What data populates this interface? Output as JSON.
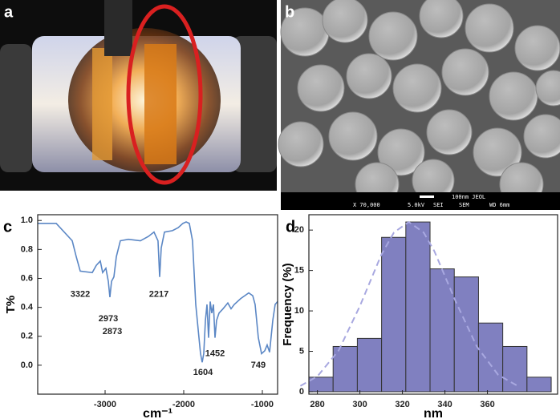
{
  "panel_labels": [
    "a",
    "b",
    "c",
    "d"
  ],
  "sem_caption": {
    "scale": "100nm JEOL",
    "magnification": "X 70,000",
    "voltage": "5.0kV",
    "detector": "SEI",
    "mode": "SEM",
    "working_distance": "WD 6mm"
  },
  "chart_data": [
    {
      "type": "line",
      "x_label": "cm⁻¹",
      "y_label": "T%",
      "color": "#5b87c5",
      "x": [
        -3857,
        -3622,
        -3418,
        -3367,
        -3316,
        -3163,
        -3112,
        -3061,
        -3031,
        -2990,
        -2959,
        -2939,
        -2918,
        -2888,
        -2857,
        -2806,
        -2704,
        -2551,
        -2449,
        -2378,
        -2327,
        -2306,
        -2286,
        -2245,
        -2143,
        -2071,
        -2010,
        -1969,
        -1929,
        -1888,
        -1847,
        -1806,
        -1786,
        -1765,
        -1745,
        -1724,
        -1704,
        -1684,
        -1663,
        -1643,
        -1622,
        -1602,
        -1582,
        -1551,
        -1500,
        -1439,
        -1398,
        -1357,
        -1276,
        -1173,
        -1122,
        -1092,
        -1051,
        -1010,
        -969,
        -939,
        -908,
        -867,
        -837,
        -806
      ],
      "values": [
        0.98,
        0.98,
        0.86,
        0.75,
        0.65,
        0.64,
        0.69,
        0.72,
        0.64,
        0.67,
        0.58,
        0.47,
        0.58,
        0.61,
        0.75,
        0.86,
        0.87,
        0.86,
        0.89,
        0.92,
        0.86,
        0.61,
        0.81,
        0.92,
        0.93,
        0.95,
        0.98,
        0.99,
        0.98,
        0.86,
        0.42,
        0.19,
        0.08,
        0.02,
        0.08,
        0.31,
        0.42,
        0.19,
        0.44,
        0.36,
        0.42,
        0.19,
        0.31,
        0.36,
        0.39,
        0.43,
        0.39,
        0.42,
        0.46,
        0.5,
        0.48,
        0.42,
        0.19,
        0.08,
        0.1,
        0.14,
        0.09,
        0.31,
        0.42,
        0.44
      ],
      "annotations": [
        {
          "text": "3322",
          "x": -3316,
          "y": 0.49
        },
        {
          "text": "2973",
          "x": -2959,
          "y": 0.32
        },
        {
          "text": "2873",
          "x": -2908,
          "y": 0.23
        },
        {
          "text": "2217",
          "x": -2316,
          "y": 0.49
        },
        {
          "text": "1604",
          "x": -1755,
          "y": -0.05
        },
        {
          "text": "1452",
          "x": -1602,
          "y": 0.08
        },
        {
          "text": "749",
          "x": -1051,
          "y": 0.0
        }
      ],
      "xlim": [
        -3857,
        -806
      ],
      "ylim": [
        -0.2,
        1.04
      ],
      "xticks": [
        -3000,
        -2000,
        -1000
      ],
      "yticks": [
        {
          "value": 0,
          "label": "0.0"
        },
        {
          "value": 0.2,
          "label": "0.2"
        },
        {
          "value": 0.4,
          "label": "0.4"
        },
        {
          "value": 0.6,
          "label": "0.6"
        },
        {
          "value": 0.8,
          "label": "0.8"
        },
        {
          "value": 1,
          "label": "1.0"
        }
      ]
    },
    {
      "type": "histogram",
      "x_label": "nm",
      "y_label": "Frequency (%)",
      "color": "#8080c0",
      "bins": [
        276,
        287.4,
        298.8,
        310.2,
        321.6,
        333,
        344.4,
        355.8,
        367.2,
        378.6,
        390
      ],
      "values": [
        1.8,
        5.6,
        6.6,
        19.1,
        21.0,
        15.2,
        14.2,
        8.5,
        5.6,
        1.8
      ],
      "fit": {
        "color": "#a8a8e0",
        "x": [
          272,
          280,
          290,
          300,
          310,
          316,
          323,
          330,
          335,
          345,
          355,
          365,
          375
        ],
        "values": [
          0.72,
          1.9,
          5.1,
          10.6,
          16.9,
          19.7,
          21,
          19.7,
          17.4,
          11.2,
          5.6,
          2.1,
          0.6
        ]
      },
      "xlim": [
        276,
        393
      ],
      "ylim": [
        -0.3,
        21.9
      ],
      "xticks": [
        280,
        300,
        320,
        340,
        360
      ],
      "yticks": [
        0,
        5,
        10,
        15,
        20
      ]
    }
  ]
}
